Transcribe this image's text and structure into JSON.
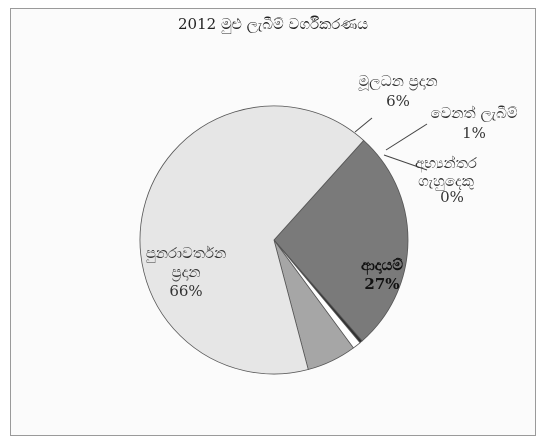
{
  "chart_data": {
    "type": "pie",
    "title": "2012 මුළු ලැබීම් වර්ගීකරණය",
    "slices": [
      {
        "name": "ආදායම්",
        "value": 27,
        "label": "27%",
        "color": "#7a7a7a"
      },
      {
        "name": "අභ්‍යන්තර ගැහුදෙකු",
        "value": 0,
        "label": "0%",
        "color": "#303030"
      },
      {
        "name": "වෙනත් ලැබීම්",
        "value": 1,
        "label": "1%",
        "color": "#ffffff"
      },
      {
        "name": "මූලධන ප්‍රදාන",
        "value": 6,
        "label": "6%",
        "color": "#a6a6a6"
      },
      {
        "name": "පුනරාවර්තන ප්‍රදාන",
        "value": 66,
        "label": "66%",
        "color": "#e6e6e6"
      }
    ]
  }
}
